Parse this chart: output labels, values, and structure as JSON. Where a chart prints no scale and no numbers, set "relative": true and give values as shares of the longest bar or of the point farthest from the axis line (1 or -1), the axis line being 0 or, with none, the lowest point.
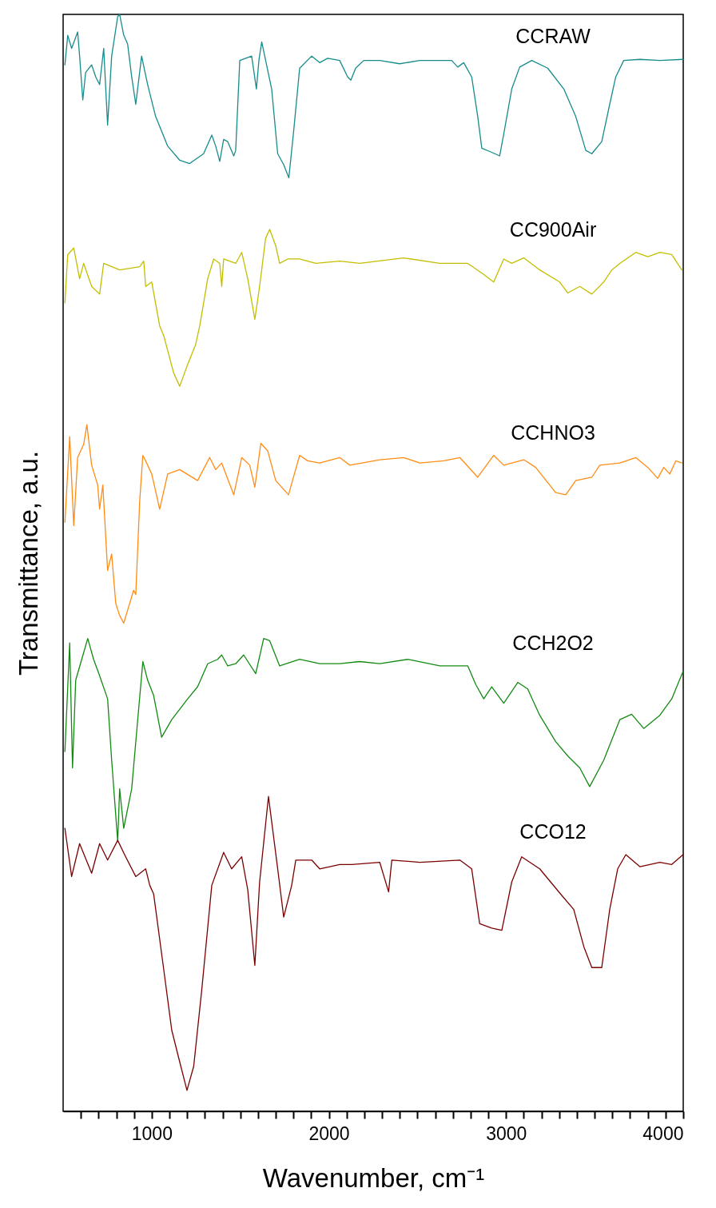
{
  "chart_data": {
    "type": "line",
    "relative": true,
    "xlabel": "Wavenumber, cm⁻¹",
    "ylabel": "Transmittance, a.u.",
    "tick_labels": "x",
    "xlim": [
      500,
      4000
    ],
    "xticks": [
      {
        "value": 600,
        "label": null
      },
      {
        "value": 700,
        "label": null
      },
      {
        "value": 800,
        "label": null
      },
      {
        "value": 900,
        "label": null
      },
      1000,
      {
        "value": 1100,
        "label": null
      },
      {
        "value": 1200,
        "label": null
      },
      {
        "value": 1300,
        "label": null
      },
      {
        "value": 1400,
        "label": null
      },
      {
        "value": 1500,
        "label": null
      },
      {
        "value": 1600,
        "label": null
      },
      {
        "value": 1700,
        "label": null
      },
      {
        "value": 1800,
        "label": null
      },
      {
        "value": 1900,
        "label": null
      },
      2000,
      {
        "value": 2100,
        "label": null
      },
      {
        "value": 2200,
        "label": null
      },
      {
        "value": 2300,
        "label": null
      },
      {
        "value": 2400,
        "label": null
      },
      {
        "value": 2500,
        "label": null
      },
      {
        "value": 2600,
        "label": null
      },
      {
        "value": 2700,
        "label": null
      },
      {
        "value": 2800,
        "label": null
      },
      {
        "value": 2900,
        "label": null
      },
      3000,
      {
        "value": 3100,
        "label": null
      },
      {
        "value": 3200,
        "label": null
      },
      {
        "value": 3300,
        "label": null
      },
      {
        "value": 3400,
        "label": null
      },
      {
        "value": 3500,
        "label": null
      },
      {
        "value": 3600,
        "label": null
      },
      {
        "value": 3700,
        "label": null
      },
      {
        "value": 3800,
        "label": null
      },
      {
        "value": 3900,
        "label": null
      },
      4000
    ],
    "series": [
      {
        "name": "CCRAW",
        "color": "#178c8c",
        "x": [
          510,
          526,
          548,
          582,
          593,
          611,
          627,
          661,
          684,
          706,
          729,
          751,
          774,
          808,
          819,
          842,
          864,
          887,
          910,
          943,
          977,
          1022,
          1090,
          1158,
          1214,
          1293,
          1339,
          1361,
          1384,
          1406,
          1429,
          1463,
          1474,
          1497,
          1564,
          1591,
          1605,
          1621,
          1643,
          1677,
          1711,
          1745,
          1774,
          1802,
          1835,
          1903,
          1948,
          1993,
          2061,
          2106,
          2124,
          2151,
          2197,
          2287,
          2400,
          2513,
          2693,
          2727,
          2761,
          2806,
          2840,
          2863,
          2908,
          2964,
          2987,
          3032,
          3077,
          3145,
          3235,
          3326,
          3393,
          3450,
          3484,
          3540,
          3585,
          3619,
          3664,
          3755,
          3868,
          4000
        ],
        "values": [
          0.954,
          0.981,
          0.969,
          0.984,
          0.962,
          0.922,
          0.947,
          0.954,
          0.943,
          0.936,
          0.969,
          0.899,
          0.962,
          0.998,
          1.0,
          0.981,
          0.973,
          0.943,
          0.918,
          0.962,
          0.936,
          0.907,
          0.88,
          0.867,
          0.864,
          0.873,
          0.89,
          0.88,
          0.866,
          0.886,
          0.884,
          0.871,
          0.876,
          0.958,
          0.962,
          0.932,
          0.958,
          0.975,
          0.958,
          0.932,
          0.873,
          0.863,
          0.851,
          0.895,
          0.951,
          0.962,
          0.956,
          0.96,
          0.958,
          0.943,
          0.94,
          0.951,
          0.958,
          0.958,
          0.955,
          0.958,
          0.958,
          0.952,
          0.956,
          0.943,
          0.907,
          0.878,
          0.875,
          0.871,
          0.891,
          0.932,
          0.952,
          0.958,
          0.951,
          0.932,
          0.907,
          0.876,
          0.873,
          0.884,
          0.918,
          0.943,
          0.958,
          0.959,
          0.958,
          0.959
        ]
      },
      {
        "name": "CC900Air",
        "color": "#c4be00",
        "x": [
          510,
          526,
          560,
          593,
          616,
          661,
          706,
          729,
          819,
          932,
          955,
          966,
          1000,
          1045,
          1068,
          1124,
          1158,
          1203,
          1248,
          1271,
          1316,
          1350,
          1384,
          1395,
          1406,
          1474,
          1508,
          1542,
          1582,
          1609,
          1643,
          1666,
          1700,
          1722,
          1768,
          1835,
          1926,
          2061,
          2174,
          2422,
          2626,
          2784,
          2874,
          2930,
          2987,
          3032,
          3100,
          3190,
          3303,
          3348,
          3416,
          3484,
          3551,
          3597,
          3642,
          3732,
          3800,
          3868,
          3935,
          3992
        ],
        "values": [
          0.737,
          0.781,
          0.787,
          0.759,
          0.773,
          0.752,
          0.745,
          0.773,
          0.767,
          0.77,
          0.775,
          0.752,
          0.756,
          0.716,
          0.707,
          0.673,
          0.661,
          0.681,
          0.699,
          0.716,
          0.759,
          0.777,
          0.773,
          0.752,
          0.777,
          0.773,
          0.783,
          0.759,
          0.722,
          0.752,
          0.796,
          0.804,
          0.789,
          0.773,
          0.777,
          0.777,
          0.773,
          0.775,
          0.773,
          0.778,
          0.773,
          0.773,
          0.763,
          0.756,
          0.777,
          0.773,
          0.778,
          0.767,
          0.756,
          0.746,
          0.752,
          0.745,
          0.756,
          0.767,
          0.773,
          0.783,
          0.779,
          0.783,
          0.781,
          0.767
        ]
      },
      {
        "name": "CCHNO3",
        "color": "#ff8c14",
        "x": [
          510,
          537,
          560,
          582,
          616,
          634,
          661,
          695,
          706,
          724,
          751,
          774,
          797,
          819,
          842,
          898,
          910,
          932,
          950,
          977,
          1000,
          1045,
          1090,
          1158,
          1259,
          1327,
          1361,
          1395,
          1463,
          1508,
          1553,
          1582,
          1616,
          1655,
          1700,
          1772,
          1835,
          1880,
          1948,
          2061,
          2118,
          2287,
          2422,
          2513,
          2648,
          2739,
          2840,
          2930,
          2987,
          3100,
          3167,
          3280,
          3337,
          3393,
          3484,
          3529,
          3642,
          3732,
          3800,
          3856,
          3890,
          3924,
          3958,
          3992
        ],
        "values": [
          0.537,
          0.615,
          0.534,
          0.596,
          0.608,
          0.626,
          0.589,
          0.571,
          0.549,
          0.571,
          0.493,
          0.508,
          0.463,
          0.452,
          0.445,
          0.475,
          0.471,
          0.556,
          0.598,
          0.589,
          0.581,
          0.549,
          0.581,
          0.585,
          0.575,
          0.596,
          0.585,
          0.591,
          0.562,
          0.596,
          0.589,
          0.569,
          0.609,
          0.602,
          0.575,
          0.562,
          0.598,
          0.593,
          0.591,
          0.596,
          0.589,
          0.594,
          0.596,
          0.591,
          0.593,
          0.596,
          0.578,
          0.598,
          0.589,
          0.594,
          0.587,
          0.564,
          0.562,
          0.575,
          0.578,
          0.589,
          0.591,
          0.596,
          0.587,
          0.577,
          0.587,
          0.581,
          0.593,
          0.591
        ]
      },
      {
        "name": "CCH2O2",
        "color": "#138a13",
        "x": [
          510,
          537,
          553,
          571,
          605,
          639,
          672,
          706,
          751,
          774,
          808,
          819,
          842,
          887,
          921,
          950,
          977,
          1011,
          1056,
          1113,
          1203,
          1259,
          1316,
          1372,
          1395,
          1429,
          1474,
          1519,
          1587,
          1632,
          1666,
          1722,
          1835,
          1948,
          2061,
          2174,
          2287,
          2445,
          2626,
          2784,
          2829,
          2874,
          2919,
          2987,
          3066,
          3122,
          3190,
          3280,
          3348,
          3416,
          3472,
          3551,
          3642,
          3709,
          3777,
          3868,
          3935,
          3999
        ],
        "values": [
          0.328,
          0.427,
          0.313,
          0.393,
          0.412,
          0.431,
          0.412,
          0.397,
          0.376,
          0.32,
          0.246,
          0.294,
          0.258,
          0.294,
          0.357,
          0.41,
          0.393,
          0.379,
          0.341,
          0.357,
          0.376,
          0.387,
          0.408,
          0.412,
          0.416,
          0.406,
          0.408,
          0.416,
          0.399,
          0.431,
          0.429,
          0.406,
          0.412,
          0.408,
          0.408,
          0.41,
          0.408,
          0.412,
          0.406,
          0.406,
          0.389,
          0.376,
          0.387,
          0.372,
          0.391,
          0.385,
          0.361,
          0.337,
          0.324,
          0.313,
          0.296,
          0.32,
          0.357,
          0.362,
          0.349,
          0.361,
          0.376,
          0.401
        ]
      },
      {
        "name": "CCO12",
        "color": "#7a0000",
        "x": [
          510,
          548,
          593,
          661,
          706,
          751,
          808,
          853,
          910,
          966,
          989,
          1011,
          1068,
          1113,
          1158,
          1199,
          1237,
          1282,
          1339,
          1406,
          1451,
          1508,
          1542,
          1582,
          1609,
          1659,
          1711,
          1745,
          1790,
          1813,
          1903,
          1948,
          2061,
          2129,
          2287,
          2337,
          2355,
          2513,
          2739,
          2806,
          2851,
          2919,
          2976,
          3032,
          3088,
          3190,
          3303,
          3382,
          3439,
          3484,
          3540,
          3585,
          3630,
          3676,
          3755,
          3868,
          3935,
          3999
        ],
        "values": [
          0.258,
          0.214,
          0.244,
          0.217,
          0.244,
          0.229,
          0.247,
          0.232,
          0.214,
          0.221,
          0.206,
          0.198,
          0.129,
          0.074,
          0.045,
          0.019,
          0.041,
          0.11,
          0.206,
          0.236,
          0.221,
          0.232,
          0.202,
          0.133,
          0.209,
          0.287,
          0.221,
          0.177,
          0.206,
          0.229,
          0.229,
          0.221,
          0.225,
          0.225,
          0.227,
          0.2,
          0.229,
          0.227,
          0.229,
          0.221,
          0.171,
          0.167,
          0.165,
          0.209,
          0.232,
          0.221,
          0.199,
          0.184,
          0.15,
          0.131,
          0.131,
          0.184,
          0.221,
          0.234,
          0.223,
          0.227,
          0.225,
          0.234
        ]
      }
    ]
  }
}
